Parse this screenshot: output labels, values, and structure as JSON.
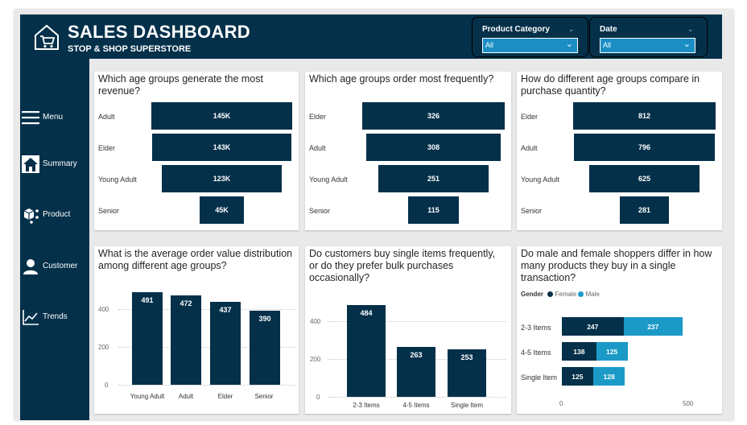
{
  "header": {
    "title": "SALES DASHBOARD",
    "subtitle": "STOP & SHOP SUPERSTORE"
  },
  "filters": [
    {
      "label": "Product Category",
      "value": "All"
    },
    {
      "label": "Date",
      "value": "All"
    }
  ],
  "sidebar": {
    "items": [
      {
        "label": "Menu",
        "icon": "menu-icon"
      },
      {
        "label": "Summary",
        "icon": "home-icon"
      },
      {
        "label": "Product",
        "icon": "cube-icon"
      },
      {
        "label": "Customer",
        "icon": "user-icon"
      },
      {
        "label": "Trends",
        "icon": "line-chart-icon"
      }
    ]
  },
  "colors": {
    "navy": "#05304a",
    "teal": "#1b9ac8",
    "background": "#e9e9e9"
  },
  "chart_data": [
    {
      "type": "bar",
      "orientation": "horizontal-funnel",
      "title": "Which age groups generate the most revenue?",
      "categories": [
        "Adult",
        "Elder",
        "Young Adult",
        "Senior"
      ],
      "values": [
        145000,
        143000,
        123000,
        45000
      ],
      "labels": [
        "145K",
        "143K",
        "123K",
        "45K"
      ]
    },
    {
      "type": "bar",
      "orientation": "horizontal-funnel",
      "title": "Which age groups order most frequently?",
      "categories": [
        "Elder",
        "Adult",
        "Young Adult",
        "Senior"
      ],
      "values": [
        326,
        308,
        251,
        115
      ],
      "labels": [
        "326",
        "308",
        "251",
        "115"
      ]
    },
    {
      "type": "bar",
      "orientation": "horizontal-funnel",
      "title": "How do different age groups compare in purchase quantity?",
      "categories": [
        "Elder",
        "Adult",
        "Young Adult",
        "Senior"
      ],
      "values": [
        812,
        796,
        625,
        281
      ],
      "labels": [
        "812",
        "796",
        "625",
        "281"
      ]
    },
    {
      "type": "bar",
      "title": "What is the average order value distribution among different age groups?",
      "categories": [
        "Young Adult",
        "Adult",
        "Elder",
        "Senior"
      ],
      "values": [
        491,
        472,
        437,
        390
      ],
      "yticks": [
        "0",
        "200",
        "400"
      ],
      "ylim": [
        0,
        530
      ],
      "grid": true
    },
    {
      "type": "bar",
      "title": "Do customers buy single items frequently, or do they prefer bulk purchases occasionally?",
      "categories": [
        "2-3 Items",
        "4-5 Items",
        "Single Item"
      ],
      "values": [
        484,
        263,
        253
      ],
      "yticks": [
        "0",
        "200",
        "400"
      ],
      "ylim": [
        0,
        520
      ],
      "grid": true
    },
    {
      "type": "bar",
      "orientation": "horizontal-stacked",
      "title": "Do male and female shoppers differ in how many products they buy in a single transaction?",
      "legend_title": "Gender",
      "categories": [
        "2-3 Items",
        "4-5 Items",
        "Single Item"
      ],
      "series": [
        {
          "name": "Female",
          "values": [
            247,
            138,
            125
          ],
          "color": "#05304a"
        },
        {
          "name": "Male",
          "values": [
            237,
            125,
            128
          ],
          "color": "#1b9ac8"
        }
      ],
      "xticks": [
        "0",
        "500"
      ],
      "xlim": [
        0,
        500
      ],
      "legend": "top-left"
    }
  ]
}
